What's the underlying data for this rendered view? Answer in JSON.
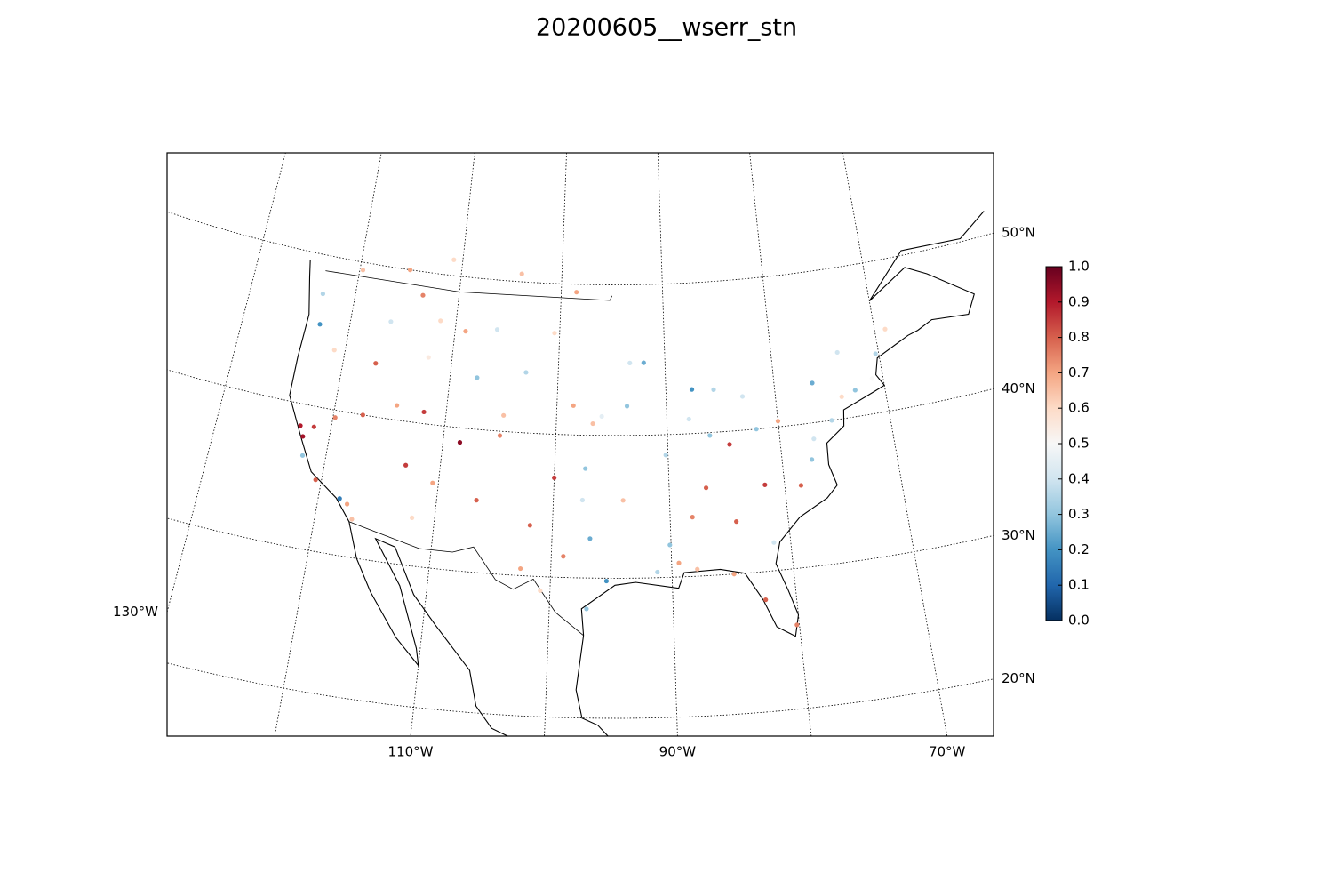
{
  "title": "20200605__wserr_stn",
  "map": {
    "projection": "lambert-conformal",
    "parallels": [
      {
        "value": 20,
        "label": "20°N"
      },
      {
        "value": 30,
        "label": "30°N"
      },
      {
        "value": 40,
        "label": "40°N"
      },
      {
        "value": 50,
        "label": "50°N"
      }
    ],
    "meridians": [
      -130,
      -120,
      -110,
      -100,
      -90,
      -80,
      -70
    ],
    "meridian_labels": [
      {
        "value": -130,
        "label": "130°W"
      },
      {
        "value": -110,
        "label": "110°W"
      },
      {
        "value": -90,
        "label": "90°W"
      },
      {
        "value": -70,
        "label": "70°W"
      }
    ],
    "stations": {
      "lon": [
        -122.3,
        -121.5,
        -122.0,
        -120.5,
        -119.8,
        -118.2,
        -117.5,
        -116.9,
        -122.8,
        -123.1,
        -121.0,
        -117.0,
        -116.2,
        -114.5,
        -112.0,
        -111.9,
        -110.5,
        -108.5,
        -106.6,
        -105.0,
        -104.8,
        -107.5,
        -109.0,
        -111.5,
        -113.5,
        -112.2,
        -106.0,
        -103.0,
        -100.5,
        -98.5,
        -97.3,
        -96.8,
        -95.4,
        -94.0,
        -99.0,
        -101.9,
        -97.5,
        -95.9,
        -93.6,
        -92.0,
        -90.2,
        -88.0,
        -87.6,
        -86.2,
        -85.6,
        -84.4,
        -83.0,
        -82.0,
        -80.0,
        -81.7,
        -78.6,
        -77.0,
        -76.5,
        -75.2,
        -74.0,
        -73.8,
        -72.7,
        -71.0,
        -70.3,
        -69.0,
        -84.5,
        -86.8,
        -88.1,
        -90.1,
        -91.2,
        -89.4,
        -93.3,
        -96.7,
        -97.0,
        -100.8,
        -98.5,
        -104.0,
        -110.9,
        -115.1,
        -119.7,
        -117.4,
        -113.0,
        -122.7,
        -80.2,
        -82.5,
        -81.4,
        -84.9,
        -87.9,
        -77.4,
        -100.0,
        -102.5
      ],
      "lat": [
        37.8,
        38.6,
        36.5,
        35.0,
        39.5,
        34.0,
        33.7,
        32.7,
        45.5,
        47.5,
        44.0,
        43.6,
        46.5,
        41.0,
        40.8,
        33.4,
        36.0,
        39.0,
        35.1,
        39.7,
        41.1,
        43.5,
        46.5,
        47.0,
        48.5,
        44.5,
        46.8,
        44.1,
        46.8,
        42.0,
        37.7,
        32.8,
        29.8,
        35.5,
        31.5,
        33.6,
        35.5,
        41.3,
        42.0,
        44.9,
        38.6,
        41.0,
        43.0,
        39.8,
        42.9,
        33.7,
        42.3,
        40.0,
        40.4,
        36.1,
        35.8,
        38.9,
        42.7,
        40.0,
        41.5,
        44.5,
        41.8,
        42.4,
        44.0,
        45.5,
        39.1,
        36.2,
        34.2,
        32.3,
        30.4,
        31.0,
        44.9,
        40.8,
        27.8,
        29.0,
        49.5,
        50.5,
        51.0,
        50.0,
        49.5,
        40.0,
        37.0,
        38.5,
        26.0,
        28.0,
        32.0,
        30.0,
        30.5,
        37.5,
        37.0,
        30.5
      ],
      "value": [
        0.92,
        0.85,
        0.3,
        0.8,
        0.75,
        0.15,
        0.7,
        0.65,
        0.2,
        0.35,
        0.6,
        0.8,
        0.4,
        0.7,
        0.85,
        0.6,
        0.7,
        0.95,
        0.8,
        0.75,
        0.65,
        0.3,
        0.7,
        0.6,
        0.75,
        0.55,
        0.4,
        0.35,
        0.6,
        0.7,
        0.3,
        0.25,
        0.2,
        0.65,
        0.75,
        0.8,
        0.4,
        0.45,
        0.3,
        0.25,
        0.35,
        0.4,
        0.2,
        0.3,
        0.35,
        0.8,
        0.4,
        0.3,
        0.7,
        0.85,
        0.8,
        0.4,
        0.25,
        0.35,
        0.6,
        0.4,
        0.3,
        0.5,
        0.35,
        0.6,
        0.85,
        0.8,
        0.75,
        0.3,
        0.35,
        0.7,
        0.4,
        0.65,
        0.3,
        0.6,
        0.7,
        0.65,
        0.6,
        0.7,
        0.65,
        0.8,
        0.85,
        0.9,
        0.75,
        0.8,
        0.4,
        0.7,
        0.65,
        0.3,
        0.85,
        0.7
      ]
    }
  },
  "colorbar": {
    "clim": [
      0,
      1
    ],
    "ticks": [
      {
        "value": 0,
        "label": "0.0"
      },
      0.1,
      0.2,
      0.3,
      0.4,
      0.5,
      0.6,
      0.7,
      0.8,
      0.9,
      {
        "value": 1,
        "label": "1.0"
      }
    ]
  }
}
